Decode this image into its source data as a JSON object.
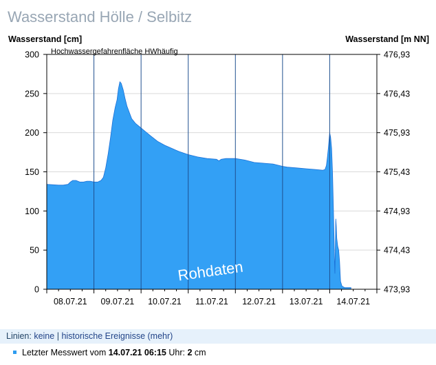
{
  "page": {
    "title": "Wasserstand Hölle / Selbitz"
  },
  "chart_data": {
    "type": "area",
    "y_left_label": "Wasserstand [cm]",
    "y_right_label": "Wasserstand [m NN]",
    "y_left_ticks": [
      0,
      50,
      100,
      150,
      200,
      250,
      300
    ],
    "y_right_ticks": [
      "473,93",
      "474,43",
      "474,93",
      "475,43",
      "475,93",
      "476,43",
      "476,93"
    ],
    "ylim": [
      0,
      300
    ],
    "x_labels": [
      "08.07.21",
      "09.07.21",
      "10.07.21",
      "11.07.21",
      "12.07.21",
      "13.07.21",
      "14.07.21"
    ],
    "x_range_days": [
      7.0,
      14.0
    ],
    "annotation": "Hochwassergefahrenfläche HWhäufig",
    "watermark": "Rohdaten",
    "fill_color": "#33a0f5",
    "series": [
      {
        "points": [
          [
            7.0,
            134
          ],
          [
            7.25,
            133
          ],
          [
            7.35,
            133
          ],
          [
            7.45,
            134
          ],
          [
            7.5,
            137
          ],
          [
            7.55,
            139
          ],
          [
            7.62,
            139
          ],
          [
            7.7,
            137
          ],
          [
            7.78,
            137
          ],
          [
            7.85,
            138
          ],
          [
            7.92,
            138
          ],
          [
            8.0,
            137
          ],
          [
            8.08,
            137
          ],
          [
            8.15,
            139
          ],
          [
            8.2,
            143
          ],
          [
            8.25,
            155
          ],
          [
            8.3,
            172
          ],
          [
            8.35,
            193
          ],
          [
            8.4,
            216
          ],
          [
            8.45,
            232
          ],
          [
            8.49,
            242
          ],
          [
            8.52,
            256
          ],
          [
            8.55,
            265
          ],
          [
            8.58,
            263
          ],
          [
            8.62,
            255
          ],
          [
            8.66,
            244
          ],
          [
            8.7,
            234
          ],
          [
            8.75,
            226
          ],
          [
            8.8,
            218
          ],
          [
            8.88,
            212
          ],
          [
            9.0,
            206
          ],
          [
            9.1,
            201
          ],
          [
            9.2,
            196
          ],
          [
            9.35,
            189
          ],
          [
            9.5,
            184
          ],
          [
            9.65,
            180
          ],
          [
            9.8,
            176
          ],
          [
            10.0,
            172
          ],
          [
            10.2,
            169
          ],
          [
            10.4,
            167
          ],
          [
            10.6,
            166
          ],
          [
            10.65,
            164
          ],
          [
            10.7,
            166
          ],
          [
            10.8,
            167
          ],
          [
            11.0,
            167
          ],
          [
            11.2,
            165
          ],
          [
            11.4,
            162
          ],
          [
            11.6,
            161
          ],
          [
            11.8,
            160
          ],
          [
            12.0,
            157
          ],
          [
            12.1,
            156
          ],
          [
            12.3,
            155
          ],
          [
            12.5,
            154
          ],
          [
            12.7,
            153
          ],
          [
            12.85,
            152
          ],
          [
            12.9,
            153
          ],
          [
            12.93,
            158
          ],
          [
            12.95,
            168
          ],
          [
            12.97,
            180
          ],
          [
            12.99,
            193
          ],
          [
            13.0,
            200
          ],
          [
            13.02,
            194
          ],
          [
            13.04,
            180
          ],
          [
            13.06,
            150
          ],
          [
            13.08,
            100
          ],
          [
            13.1,
            40
          ],
          [
            13.11,
            20
          ],
          [
            13.12,
            60
          ],
          [
            13.13,
            90
          ],
          [
            13.14,
            80
          ],
          [
            13.15,
            65
          ],
          [
            13.17,
            55
          ],
          [
            13.19,
            50
          ],
          [
            13.21,
            35
          ],
          [
            13.23,
            10
          ],
          [
            13.26,
            4
          ],
          [
            13.32,
            2
          ],
          [
            13.4,
            2
          ],
          [
            13.45,
            2
          ]
        ]
      }
    ],
    "day_separator_x": [
      8,
      9,
      10,
      11,
      12,
      13
    ]
  },
  "lines_bar": {
    "prefix": "Linien:",
    "link_none": "keine",
    "separator": "|",
    "link_events": "historische Ereignisse (mehr)"
  },
  "last_value": {
    "prefix": "Letzter Messwert vom",
    "datetime": "14.07.21 06:15",
    "unit_word": "Uhr:",
    "value": "2",
    "unit": "cm"
  }
}
